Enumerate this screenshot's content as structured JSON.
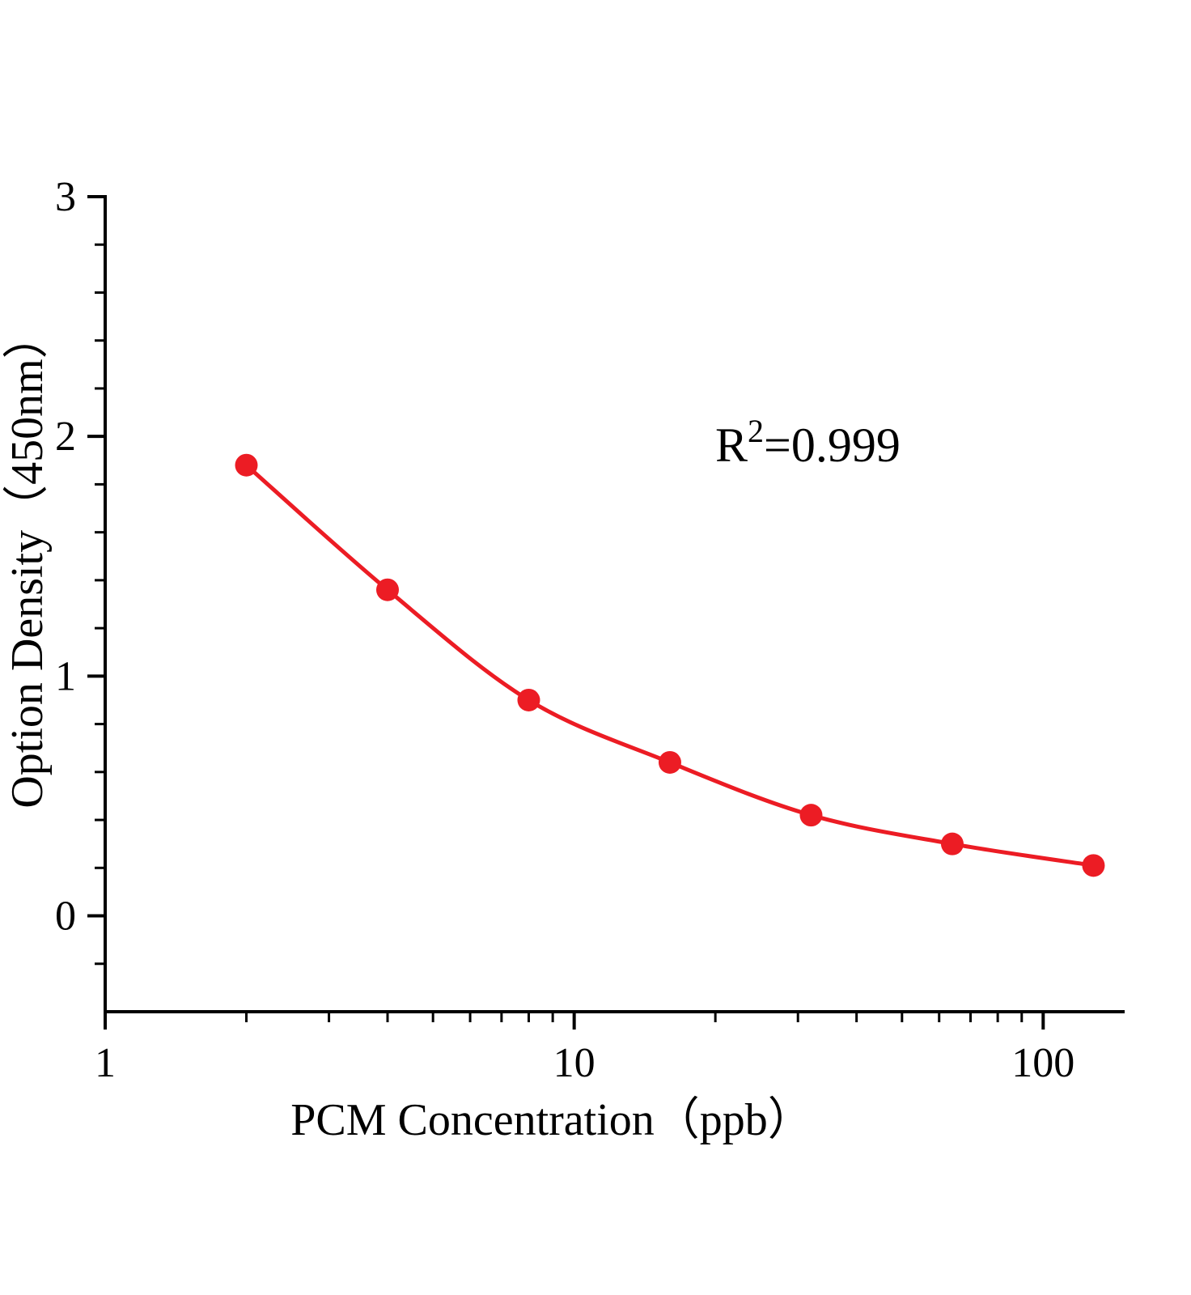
{
  "page": {
    "background": "#ffffff"
  },
  "chart_data": {
    "type": "scatter",
    "title": "",
    "xlabel": "PCM Concentration（ppb）",
    "ylabel": "Option Density（450nm）",
    "x_scale": "log",
    "x": [
      2,
      4,
      8,
      16,
      32,
      64,
      128
    ],
    "y": [
      1.88,
      1.36,
      0.9,
      0.64,
      0.42,
      0.3,
      0.21
    ],
    "xlim": [
      1,
      148
    ],
    "ylim": [
      -0.4,
      3
    ],
    "x_major_ticks": [
      1,
      10,
      100
    ],
    "x_major_tick_labels": [
      "1",
      "10",
      "100"
    ],
    "y_major_ticks": [
      0,
      1,
      2,
      3
    ],
    "y_major_tick_labels": [
      "0",
      "1",
      "2",
      "3"
    ],
    "y_minor_step": 0.2,
    "annotation": {
      "base": "R",
      "sup": "2",
      "rest": "=0.999"
    },
    "series_color": "#ec1c24",
    "axis_color": "#000000",
    "grid": false,
    "legend_position": "none",
    "curve": "smooth-fit-through-points"
  }
}
